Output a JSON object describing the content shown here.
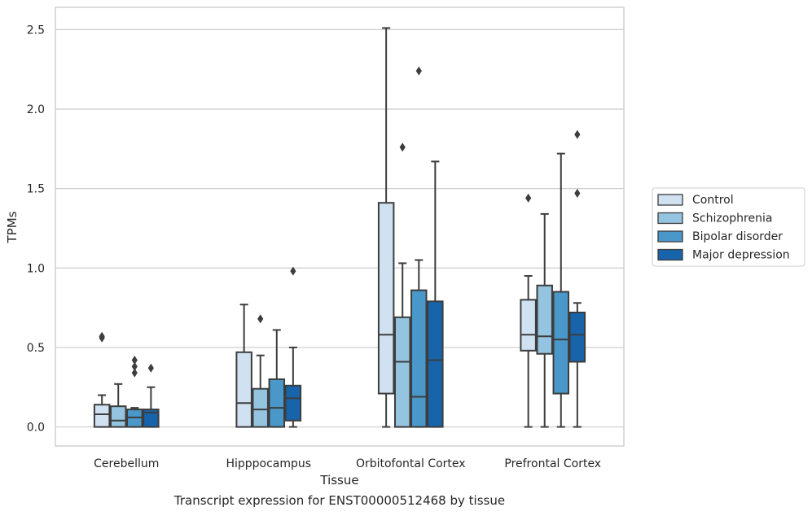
{
  "caption": "Transcript expression for ENST00000512468 by tissue",
  "chart_data": {
    "type": "box",
    "title": "",
    "xlabel": "Tissue",
    "ylabel": "TPMs",
    "ylim": [
      -0.12,
      2.64
    ],
    "yticks": [
      0.0,
      0.5,
      1.0,
      1.5,
      2.0,
      2.5
    ],
    "ytick_labels": [
      "0.0",
      "0.5",
      "1.0",
      "1.5",
      "2.0",
      "2.5"
    ],
    "grid": "horizontal",
    "legend_position": "right",
    "categories": [
      "Cerebellum",
      "Hipppocampus",
      "Orbitofontal Cortex",
      "Prefrontal Cortex"
    ],
    "series": [
      {
        "name": "Control",
        "color": "#d0e1f2",
        "boxes": [
          {
            "whislo": 0.0,
            "q1": 0.0,
            "med": 0.08,
            "q3": 0.14,
            "whishi": 0.2,
            "fliers": [
              0.56,
              0.57
            ]
          },
          {
            "whislo": 0.0,
            "q1": 0.0,
            "med": 0.15,
            "q3": 0.47,
            "whishi": 0.77,
            "fliers": []
          },
          {
            "whislo": 0.0,
            "q1": 0.21,
            "med": 0.58,
            "q3": 1.41,
            "whishi": 2.51,
            "fliers": []
          },
          {
            "whislo": 0.0,
            "q1": 0.48,
            "med": 0.58,
            "q3": 0.8,
            "whishi": 0.95,
            "fliers": [
              1.44
            ]
          }
        ]
      },
      {
        "name": "Schizophrenia",
        "color": "#94c4df",
        "boxes": [
          {
            "whislo": 0.0,
            "q1": 0.0,
            "med": 0.04,
            "q3": 0.13,
            "whishi": 0.27,
            "fliers": []
          },
          {
            "whislo": 0.0,
            "q1": 0.0,
            "med": 0.11,
            "q3": 0.24,
            "whishi": 0.45,
            "fliers": [
              0.68
            ]
          },
          {
            "whislo": 0.0,
            "q1": 0.0,
            "med": 0.41,
            "q3": 0.69,
            "whishi": 1.03,
            "fliers": [
              1.76
            ]
          },
          {
            "whislo": 0.0,
            "q1": 0.46,
            "med": 0.57,
            "q3": 0.89,
            "whishi": 1.34,
            "fliers": []
          }
        ]
      },
      {
        "name": "Bipolar disorder",
        "color": "#4a98c9",
        "boxes": [
          {
            "whislo": 0.0,
            "q1": 0.0,
            "med": 0.06,
            "q3": 0.11,
            "whishi": 0.12,
            "fliers": [
              0.34,
              0.38,
              0.42
            ]
          },
          {
            "whislo": 0.0,
            "q1": 0.0,
            "med": 0.12,
            "q3": 0.3,
            "whishi": 0.61,
            "fliers": []
          },
          {
            "whislo": 0.0,
            "q1": 0.0,
            "med": 0.19,
            "q3": 0.86,
            "whishi": 1.05,
            "fliers": [
              2.24
            ]
          },
          {
            "whislo": 0.0,
            "q1": 0.21,
            "med": 0.55,
            "q3": 0.85,
            "whishi": 1.72,
            "fliers": []
          }
        ]
      },
      {
        "name": "Major depression",
        "color": "#1764ab",
        "boxes": [
          {
            "whislo": 0.0,
            "q1": 0.0,
            "med": 0.09,
            "q3": 0.11,
            "whishi": 0.25,
            "fliers": [
              0.37
            ]
          },
          {
            "whislo": 0.0,
            "q1": 0.04,
            "med": 0.18,
            "q3": 0.26,
            "whishi": 0.5,
            "fliers": [
              0.98
            ]
          },
          {
            "whislo": 0.0,
            "q1": 0.0,
            "med": 0.42,
            "q3": 0.79,
            "whishi": 1.67,
            "fliers": []
          },
          {
            "whislo": 0.0,
            "q1": 0.41,
            "med": 0.58,
            "q3": 0.72,
            "whishi": 0.78,
            "fliers": [
              1.47,
              1.84
            ]
          }
        ]
      }
    ]
  }
}
